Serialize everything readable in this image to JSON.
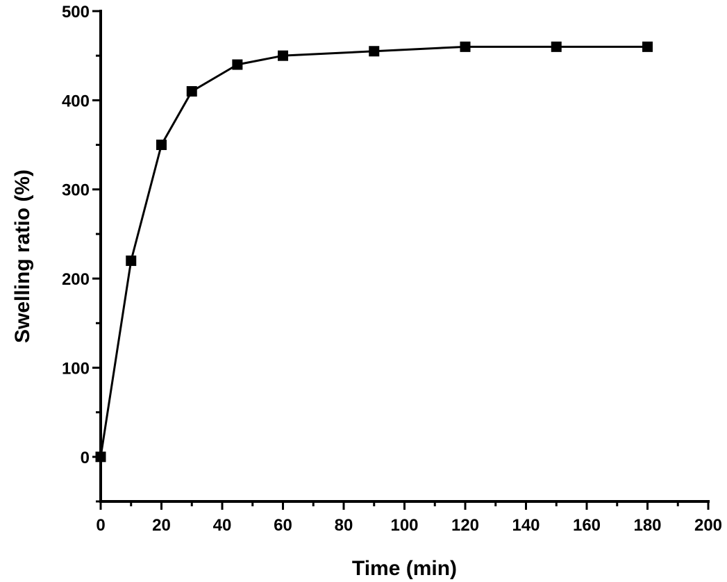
{
  "chart_data": {
    "type": "line",
    "title": "",
    "xlabel": "Time (min)",
    "ylabel": "Swelling ratio (%)",
    "xlim": [
      0,
      200
    ],
    "ylim": [
      -50,
      500
    ],
    "x_ticks": [
      0,
      20,
      40,
      60,
      80,
      100,
      120,
      140,
      160,
      180,
      200
    ],
    "y_ticks": [
      0,
      100,
      200,
      300,
      400,
      500
    ],
    "grid": false,
    "legend": "none",
    "series": [
      {
        "marker": "square",
        "color": "#000000",
        "x": [
          0,
          10,
          20,
          30,
          45,
          60,
          90,
          120,
          150,
          180
        ],
        "y": [
          0,
          220,
          350,
          410,
          440,
          450,
          455,
          460,
          460,
          460
        ]
      }
    ]
  }
}
